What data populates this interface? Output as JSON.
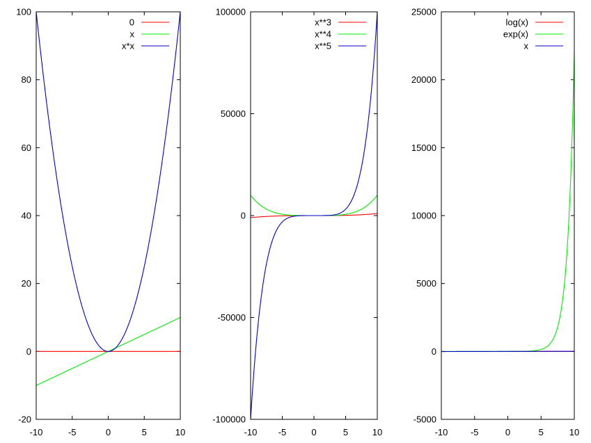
{
  "chart_data": [
    {
      "type": "line",
      "xlim": [
        -10,
        10
      ],
      "ylim": [
        -20,
        100
      ],
      "xticks": [
        "-10",
        "-5",
        "0",
        "5",
        "10"
      ],
      "yticks": [
        "-20",
        "0",
        "20",
        "40",
        "60",
        "80",
        "100"
      ],
      "legend_position": "top-right",
      "series": [
        {
          "name": "0",
          "color": "#ff0000",
          "expr": "zero"
        },
        {
          "name": "x",
          "color": "#00ee00",
          "expr": "x"
        },
        {
          "name": "x*x",
          "color": "#0000cc",
          "expr": "x2"
        }
      ]
    },
    {
      "type": "line",
      "xlim": [
        -10,
        10
      ],
      "ylim": [
        -100000,
        100000
      ],
      "xticks": [
        "-10",
        "-5",
        "0",
        "5",
        "10"
      ],
      "yticks": [
        "-100000",
        "-50000",
        "0",
        "50000",
        "100000"
      ],
      "legend_position": "top-right",
      "series": [
        {
          "name": "x**3",
          "color": "#ff0000",
          "expr": "x3"
        },
        {
          "name": "x**4",
          "color": "#00ee00",
          "expr": "x4"
        },
        {
          "name": "x**5",
          "color": "#0000cc",
          "expr": "x5"
        }
      ]
    },
    {
      "type": "line",
      "xlim": [
        -10,
        10
      ],
      "ylim": [
        -5000,
        25000
      ],
      "xticks": [
        "-10",
        "-5",
        "0",
        "5",
        "10"
      ],
      "yticks": [
        "-5000",
        "0",
        "5000",
        "10000",
        "15000",
        "20000",
        "25000"
      ],
      "legend_position": "top-right",
      "series": [
        {
          "name": "log(x)",
          "color": "#ff0000",
          "expr": "log"
        },
        {
          "name": "exp(x)",
          "color": "#00ee00",
          "expr": "exp"
        },
        {
          "name": "x",
          "color": "#0000cc",
          "expr": "x"
        }
      ]
    }
  ]
}
